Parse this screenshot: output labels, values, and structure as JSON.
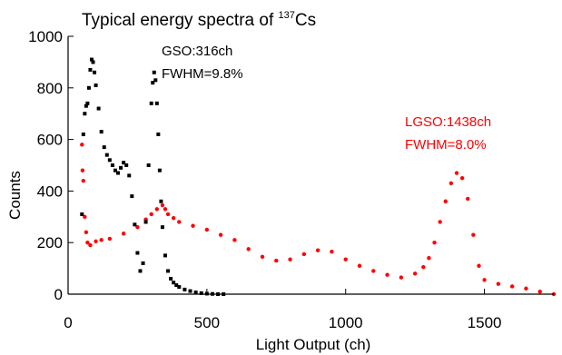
{
  "chart_data": {
    "type": "scatter",
    "title": {
      "prefix": "Typical energy spectra of ",
      "superscript": "137",
      "suffix": "Cs"
    },
    "xlabel": "Light Output (ch)",
    "ylabel": "Counts",
    "xlim": [
      0,
      1750
    ],
    "ylim": [
      0,
      1000
    ],
    "xticks": [
      0,
      500,
      1000,
      1500
    ],
    "yticks": [
      0,
      200,
      400,
      600,
      800,
      1000
    ],
    "grid": false,
    "legend": "none",
    "series": [
      {
        "color": "#000000",
        "marker": "square",
        "peak_label": "GSO:316ch",
        "resolution_label": "FWHM=9.8%",
        "x": [
          50,
          55,
          60,
          65,
          70,
          75,
          80,
          85,
          90,
          95,
          100,
          110,
          120,
          130,
          140,
          150,
          160,
          170,
          180,
          190,
          200,
          210,
          220,
          230,
          240,
          250,
          260,
          270,
          280,
          290,
          300,
          305,
          310,
          315,
          320,
          325,
          330,
          335,
          340,
          350,
          360,
          370,
          380,
          390,
          400,
          420,
          440,
          460,
          480,
          500,
          520,
          540,
          560
        ],
        "y": [
          310,
          620,
          700,
          730,
          740,
          800,
          870,
          910,
          900,
          860,
          810,
          720,
          630,
          570,
          540,
          520,
          500,
          480,
          470,
          490,
          510,
          500,
          460,
          380,
          270,
          160,
          90,
          120,
          280,
          500,
          740,
          820,
          860,
          830,
          740,
          620,
          480,
          360,
          260,
          150,
          90,
          60,
          45,
          35,
          28,
          18,
          12,
          7,
          4,
          2,
          1,
          0,
          0
        ]
      },
      {
        "color": "#ff0000",
        "marker": "dot",
        "peak_label": "LGSO:1438ch",
        "resolution_label": "FWHM=8.0%",
        "x": [
          50,
          52,
          55,
          60,
          65,
          70,
          80,
          100,
          120,
          150,
          200,
          250,
          280,
          300,
          320,
          340,
          350,
          360,
          380,
          400,
          450,
          500,
          550,
          600,
          650,
          700,
          750,
          800,
          850,
          900,
          950,
          1000,
          1050,
          1100,
          1150,
          1200,
          1250,
          1280,
          1300,
          1320,
          1340,
          1360,
          1380,
          1400,
          1420,
          1440,
          1460,
          1480,
          1500,
          1550,
          1600,
          1650,
          1700,
          1750
        ],
        "y": [
          580,
          480,
          440,
          300,
          240,
          200,
          190,
          205,
          210,
          215,
          235,
          260,
          290,
          310,
          330,
          345,
          330,
          310,
          295,
          280,
          265,
          250,
          230,
          210,
          175,
          145,
          130,
          135,
          155,
          170,
          165,
          135,
          110,
          90,
          75,
          65,
          80,
          105,
          140,
          200,
          280,
          360,
          430,
          470,
          450,
          370,
          230,
          110,
          55,
          40,
          30,
          22,
          10,
          0
        ]
      }
    ]
  }
}
